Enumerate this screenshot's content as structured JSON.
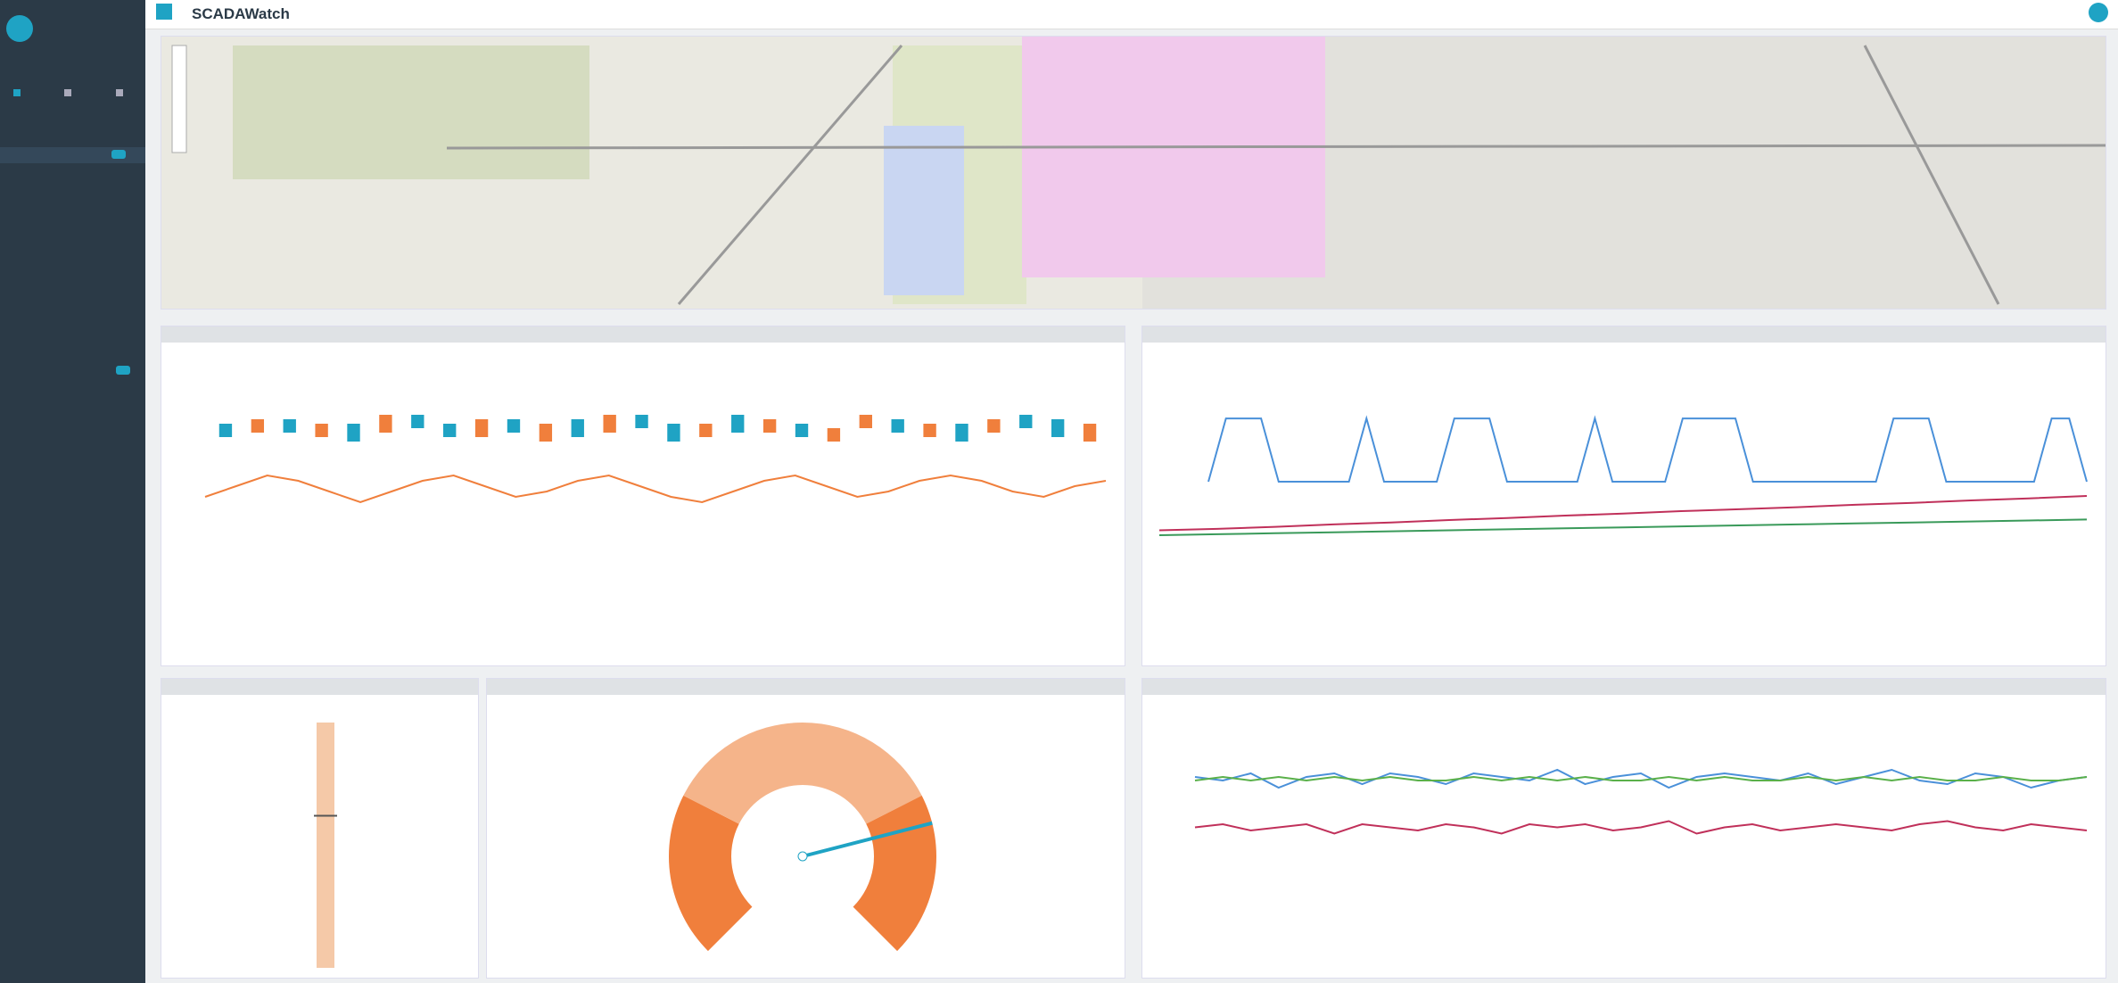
{
  "header": {
    "title": "SCADAWatch"
  },
  "charts": [
    {
      "type": "candlestick",
      "ylim": [
        0,
        10
      ],
      "up_color": "#1fa3c4",
      "down_color": "#f07f3c",
      "open": [
        3,
        7,
        4,
        6,
        2,
        8,
        5,
        3,
        7,
        4,
        6,
        3,
        8,
        5,
        2,
        6,
        4,
        7,
        3,
        5,
        8,
        4,
        6,
        2,
        7,
        5,
        3,
        6
      ],
      "close": [
        6,
        4,
        7,
        3,
        6,
        4,
        8,
        6,
        3,
        7,
        2,
        7,
        4,
        8,
        6,
        3,
        8,
        4,
        6,
        2,
        5,
        7,
        3,
        6,
        4,
        8,
        7,
        2
      ]
    },
    {
      "type": "line",
      "ylim": [
        0,
        10
      ],
      "series": [
        {
          "color": "#f07f3c",
          "values": [
            3,
            5,
            7,
            6,
            4,
            2,
            4,
            6,
            7,
            5,
            3,
            4,
            6,
            7,
            5,
            3,
            2,
            4,
            6,
            7,
            5,
            3,
            4,
            6,
            7,
            6,
            4,
            3,
            5,
            6
          ]
        }
      ]
    },
    {
      "type": "line",
      "ylim": [
        0,
        1.2
      ],
      "series": [
        {
          "color": "#4a90d9",
          "values": [
            0,
            1,
            1,
            1,
            0,
            0,
            0,
            0,
            0,
            1,
            0,
            0,
            0,
            0,
            1,
            1,
            1,
            0,
            0,
            0,
            0,
            0,
            1,
            0,
            0,
            0,
            0,
            1,
            1,
            1,
            1,
            0,
            0,
            0,
            0,
            0,
            0,
            0,
            0,
            1,
            1,
            1,
            0,
            0,
            0,
            0,
            0,
            0,
            1,
            1,
            0
          ]
        }
      ]
    },
    {
      "type": "line",
      "ylim": [
        0,
        10
      ],
      "series": [
        {
          "color": "#c0305a",
          "values": [
            1,
            1.3,
            1.7,
            2.2,
            2.6,
            3.1,
            3.5,
            4,
            4.4,
            4.9,
            5.3,
            5.7,
            6.2,
            6.6,
            7.1,
            7.5,
            8
          ]
        },
        {
          "color": "#3a9a5a",
          "values": [
            0,
            0.2,
            0.4,
            0.6,
            0.8,
            1,
            1.2,
            1.4,
            1.6,
            1.8,
            2,
            2.2,
            2.4,
            2.6,
            2.8,
            3,
            3.2
          ]
        }
      ]
    },
    {
      "type": "line",
      "ylim": [
        0,
        10
      ],
      "series": [
        {
          "color": "#4a90d9",
          "values": [
            6,
            5,
            7,
            3,
            6,
            7,
            4,
            7,
            6,
            4,
            7,
            6,
            5,
            8,
            4,
            6,
            7,
            3,
            6,
            7,
            6,
            5,
            7,
            4,
            6,
            8,
            5,
            4,
            7,
            6,
            3,
            5,
            6
          ]
        },
        {
          "color": "#5ab04a",
          "values": [
            5,
            6,
            5,
            6,
            5,
            6,
            5,
            6,
            5,
            5,
            6,
            5,
            6,
            5,
            6,
            5,
            5,
            6,
            5,
            6,
            5,
            5,
            6,
            5,
            6,
            5,
            6,
            5,
            5,
            6,
            5,
            5,
            6
          ]
        }
      ]
    },
    {
      "type": "line",
      "ylim": [
        0,
        10
      ],
      "series": [
        {
          "color": "#c0305a",
          "values": [
            5,
            6,
            4,
            5,
            6,
            3,
            6,
            5,
            4,
            6,
            5,
            3,
            6,
            5,
            6,
            4,
            5,
            7,
            3,
            5,
            6,
            4,
            5,
            6,
            5,
            4,
            6,
            7,
            5,
            4,
            6,
            5,
            4
          ]
        }
      ]
    },
    {
      "type": "vbar",
      "ylim": [
        0,
        100
      ],
      "value": 62,
      "color": "#f07f3c"
    },
    {
      "type": "gauge",
      "ylim": [
        0,
        100
      ],
      "value": 78,
      "color": "#1fa3c4"
    }
  ]
}
